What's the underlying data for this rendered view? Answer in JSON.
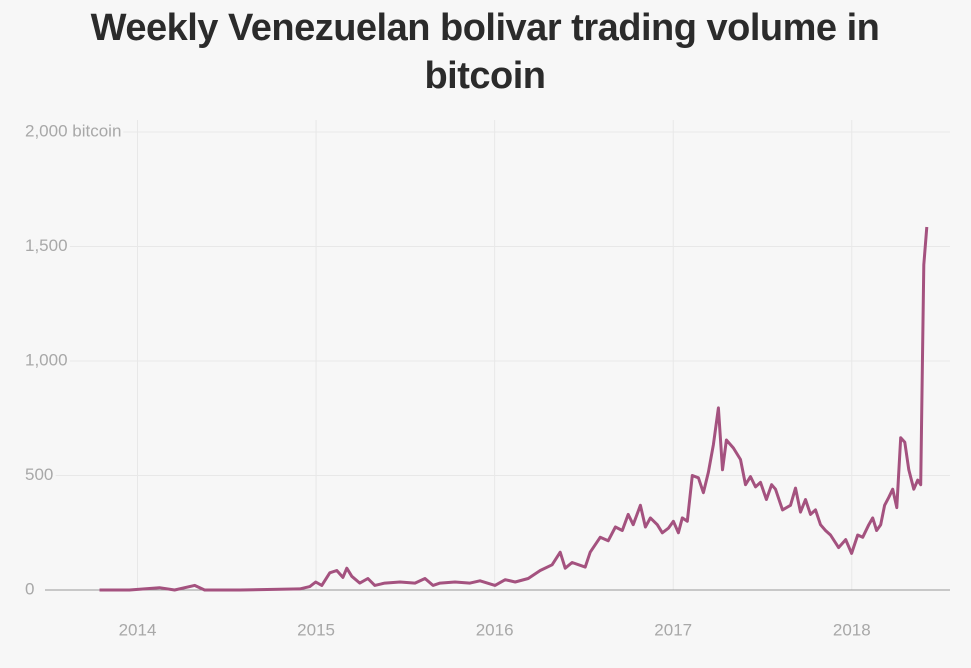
{
  "chart_data": {
    "type": "line",
    "title": "Weekly Venezuelan bolivar trading volume in bitcoin",
    "x": [
      2013.787,
      2013.955,
      2014.123,
      2014.208,
      2014.32,
      2014.376,
      2014.572,
      2014.909,
      2014.965,
      2014.998,
      2015.032,
      2015.077,
      2015.116,
      2015.15,
      2015.172,
      2015.2,
      2015.245,
      2015.29,
      2015.329,
      2015.385,
      2015.47,
      2015.554,
      2015.61,
      2015.655,
      2015.694,
      2015.778,
      2015.862,
      2015.918,
      2016.002,
      2016.059,
      2016.115,
      2016.188,
      2016.255,
      2016.322,
      2016.367,
      2016.395,
      2016.434,
      2016.507,
      2016.535,
      2016.591,
      2016.636,
      2016.676,
      2016.715,
      2016.748,
      2016.776,
      2016.816,
      2016.844,
      2016.872,
      2016.911,
      2016.939,
      2016.973,
      2017.001,
      2017.029,
      2017.051,
      2017.079,
      2017.107,
      2017.141,
      2017.169,
      2017.197,
      2017.225,
      2017.253,
      2017.276,
      2017.298,
      2017.337,
      2017.377,
      2017.405,
      2017.433,
      2017.461,
      2017.489,
      2017.522,
      2017.551,
      2017.573,
      2017.612,
      2017.657,
      2017.685,
      2017.713,
      2017.741,
      2017.769,
      2017.797,
      2017.825,
      2017.853,
      2017.881,
      2017.926,
      2017.966,
      2017.999,
      2018.033,
      2018.061,
      2018.095,
      2018.117,
      2018.139,
      2018.162,
      2018.184,
      2018.207,
      2018.229,
      2018.252,
      2018.274,
      2018.297,
      2018.319,
      2018.347,
      2018.369,
      2018.386,
      2018.403,
      2018.42
    ],
    "series": [
      {
        "name": "Weekly volume",
        "color": "#a4527f",
        "values": [
          0,
          0,
          10,
          0,
          20,
          0,
          0,
          5,
          15,
          35,
          20,
          75,
          85,
          55,
          95,
          60,
          30,
          50,
          20,
          30,
          35,
          30,
          50,
          20,
          30,
          35,
          30,
          40,
          20,
          45,
          35,
          50,
          85,
          110,
          165,
          95,
          120,
          100,
          165,
          230,
          215,
          275,
          260,
          330,
          285,
          370,
          275,
          315,
          285,
          250,
          270,
          300,
          250,
          315,
          300,
          500,
          490,
          425,
          515,
          635,
          795,
          525,
          655,
          620,
          570,
          460,
          495,
          450,
          470,
          395,
          460,
          440,
          350,
          370,
          445,
          340,
          395,
          330,
          350,
          285,
          260,
          240,
          185,
          220,
          160,
          240,
          230,
          285,
          315,
          260,
          285,
          370,
          405,
          440,
          360,
          665,
          645,
          525,
          440,
          480,
          460,
          1420,
          1585
        ]
      }
    ],
    "xlim": [
      2013.37,
      2018.55
    ],
    "xticks": [
      2014,
      2015,
      2016,
      2017,
      2018
    ],
    "ylim": [
      0,
      2000
    ],
    "yticks": [
      0,
      500,
      {
        "value": 1000,
        "label": "1,000"
      },
      {
        "value": 1500,
        "label": "1,500"
      },
      {
        "value": 2000,
        "label": "2,000 bitcoin"
      }
    ],
    "grid": true
  }
}
